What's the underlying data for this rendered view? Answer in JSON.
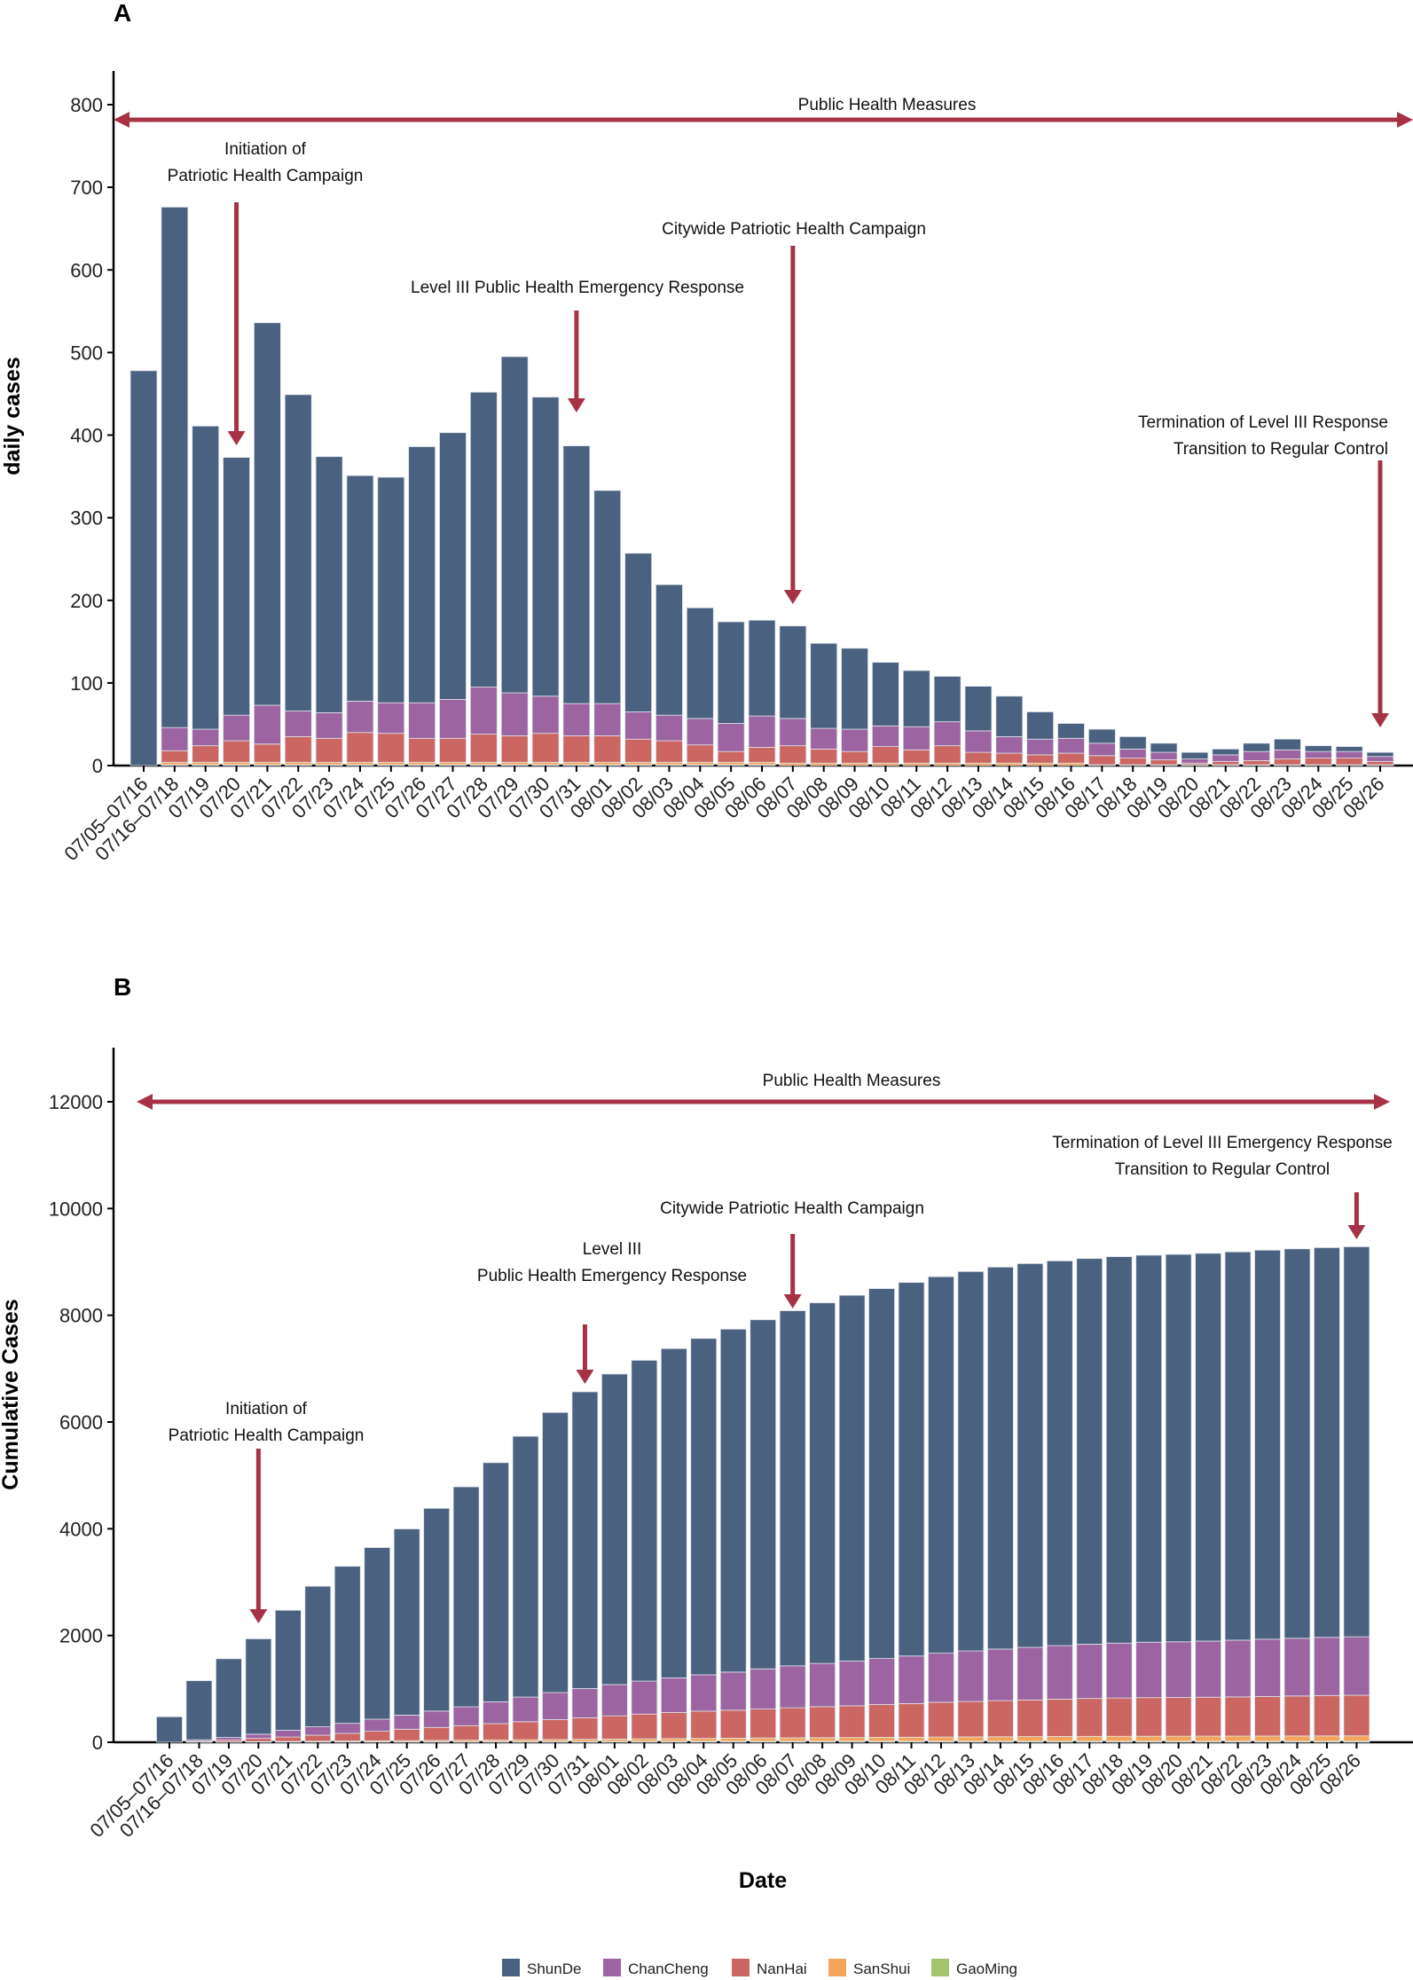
{
  "colors": {
    "ShunDe": "#4a627f",
    "ChanCheng": "#9c64a0",
    "NanHai": "#cb6662",
    "SanShui": "#f5a55a",
    "GaoMing": "#a3c46c",
    "arrow": "#a83245"
  },
  "legend": [
    "ShunDe",
    "ChanCheng",
    "NanHai",
    "SanShui",
    "GaoMing"
  ],
  "xlabel": "Date",
  "chart_data": [
    {
      "panel": "A",
      "type": "bar",
      "stacked": true,
      "ylabel": "daily cases",
      "ylim": [
        0,
        840
      ],
      "yticks": [
        0,
        100,
        200,
        300,
        400,
        500,
        600,
        700,
        800
      ],
      "grid": false,
      "legend_position": "bottom",
      "categories": [
        "07/05–07/16",
        "07/16–07/18",
        "07/19",
        "07/20",
        "07/21",
        "07/22",
        "07/23",
        "07/24",
        "07/25",
        "07/26",
        "07/27",
        "07/28",
        "07/29",
        "07/30",
        "07/31",
        "08/01",
        "08/02",
        "08/03",
        "08/04",
        "08/05",
        "08/06",
        "08/07",
        "08/08",
        "08/09",
        "08/10",
        "08/11",
        "08/12",
        "08/13",
        "08/14",
        "08/15",
        "08/16",
        "08/17",
        "08/18",
        "08/19",
        "08/20",
        "08/21",
        "08/22",
        "08/23",
        "08/24",
        "08/25",
        "08/26"
      ],
      "series": [
        {
          "name": "GaoMing",
          "values": [
            0,
            1,
            1,
            1,
            1,
            1,
            1,
            1,
            1,
            1,
            1,
            1,
            1,
            1,
            1,
            1,
            1,
            1,
            1,
            1,
            1,
            0,
            0,
            0,
            0,
            0,
            0,
            0,
            0,
            0,
            0,
            0,
            0,
            0,
            0,
            0,
            0,
            0,
            0,
            0,
            0
          ]
        },
        {
          "name": "SanShui",
          "values": [
            0,
            3,
            3,
            3,
            3,
            3,
            3,
            3,
            3,
            3,
            3,
            3,
            3,
            3,
            3,
            3,
            3,
            3,
            3,
            3,
            3,
            3,
            3,
            3,
            3,
            3,
            3,
            3,
            3,
            3,
            3,
            1,
            1,
            1,
            1,
            1,
            1,
            1,
            1,
            1,
            1
          ]
        },
        {
          "name": "NanHai",
          "values": [
            0,
            14,
            20,
            26,
            22,
            31,
            29,
            36,
            35,
            29,
            29,
            34,
            32,
            35,
            32,
            32,
            28,
            26,
            21,
            13,
            18,
            21,
            17,
            14,
            20,
            16,
            21,
            13,
            12,
            10,
            12,
            11,
            8,
            6,
            2,
            4,
            5,
            7,
            8,
            8,
            4
          ]
        },
        {
          "name": "ChanCheng",
          "values": [
            0,
            28,
            20,
            31,
            47,
            31,
            31,
            38,
            37,
            43,
            47,
            57,
            52,
            45,
            39,
            39,
            33,
            31,
            32,
            34,
            38,
            33,
            25,
            27,
            25,
            28,
            29,
            26,
            20,
            19,
            18,
            15,
            11,
            9,
            5,
            8,
            11,
            11,
            8,
            8,
            6
          ]
        },
        {
          "name": "ShunDe",
          "values": [
            478,
            630,
            367,
            312,
            463,
            383,
            310,
            273,
            273,
            310,
            323,
            357,
            407,
            362,
            312,
            258,
            192,
            158,
            134,
            123,
            116,
            112,
            103,
            98,
            77,
            68,
            55,
            54,
            49,
            33,
            18,
            17,
            15,
            11,
            8,
            7,
            10,
            13,
            7,
            6,
            5
          ]
        }
      ],
      "annotations": [
        {
          "id": "phm",
          "lines": [
            "Public Health Measures"
          ],
          "arrow": "both"
        },
        {
          "id": "init",
          "lines": [
            "Initiation of",
            "Patriotic Health Campaign"
          ],
          "category": "07/20"
        },
        {
          "id": "lvl3",
          "lines": [
            "Level III Public Health Emergency Response"
          ],
          "category": "07/31"
        },
        {
          "id": "city",
          "lines": [
            "Citywide Patriotic Health Campaign"
          ],
          "category": "08/07"
        },
        {
          "id": "term",
          "lines": [
            "Termination of Level III Response",
            "Transition to Regular Control"
          ],
          "category": "08/26"
        }
      ]
    },
    {
      "panel": "B",
      "type": "bar",
      "stacked": true,
      "ylabel": "Cumulative Cases",
      "xlabel": "Date",
      "ylim": [
        0,
        13000
      ],
      "yticks": [
        0,
        2000,
        4000,
        6000,
        8000,
        10000,
        12000
      ],
      "grid": false,
      "legend_position": "bottom",
      "categories": [
        "07/05–07/16",
        "07/16–07/18",
        "07/19",
        "07/20",
        "07/21",
        "07/22",
        "07/23",
        "07/24",
        "07/25",
        "07/26",
        "07/27",
        "07/28",
        "07/29",
        "07/30",
        "07/31",
        "08/01",
        "08/02",
        "08/03",
        "08/04",
        "08/05",
        "08/06",
        "08/07",
        "08/08",
        "08/09",
        "08/10",
        "08/11",
        "08/12",
        "08/13",
        "08/14",
        "08/15",
        "08/16",
        "08/17",
        "08/18",
        "08/19",
        "08/20",
        "08/21",
        "08/22",
        "08/23",
        "08/24",
        "08/25",
        "08/26"
      ],
      "series": [
        {
          "name": "GaoMing",
          "values": [
            0,
            1,
            2,
            3,
            4,
            5,
            6,
            7,
            8,
            9,
            10,
            11,
            12,
            13,
            14,
            15,
            16,
            17,
            18,
            19,
            20,
            20,
            20,
            20,
            20,
            20,
            20,
            20,
            20,
            20,
            20,
            20,
            20,
            20,
            20,
            20,
            20,
            20,
            20,
            20,
            20
          ]
        },
        {
          "name": "SanShui",
          "values": [
            0,
            3,
            6,
            9,
            12,
            15,
            18,
            21,
            24,
            27,
            30,
            33,
            36,
            39,
            42,
            45,
            48,
            51,
            54,
            57,
            60,
            63,
            66,
            69,
            72,
            75,
            78,
            81,
            84,
            87,
            90,
            91,
            92,
            93,
            94,
            95,
            96,
            97,
            98,
            99,
            100
          ]
        },
        {
          "name": "NanHai",
          "values": [
            0,
            14,
            34,
            60,
            82,
            113,
            142,
            178,
            213,
            242,
            271,
            305,
            337,
            372,
            404,
            436,
            464,
            490,
            511,
            524,
            542,
            563,
            580,
            594,
            614,
            630,
            651,
            664,
            676,
            686,
            698,
            709,
            717,
            723,
            725,
            729,
            734,
            741,
            749,
            757,
            761
          ]
        },
        {
          "name": "ChanCheng",
          "values": [
            0,
            28,
            48,
            79,
            126,
            157,
            188,
            226,
            263,
            306,
            353,
            410,
            462,
            507,
            546,
            585,
            618,
            649,
            681,
            715,
            753,
            786,
            811,
            838,
            863,
            891,
            920,
            946,
            966,
            985,
            1003,
            1018,
            1029,
            1038,
            1043,
            1051,
            1062,
            1073,
            1081,
            1089,
            1095
          ]
        },
        {
          "name": "ShunDe",
          "values": [
            478,
            1108,
            1475,
            1787,
            2250,
            2633,
            2943,
            3216,
            3489,
            3799,
            4122,
            4479,
            4886,
            5248,
            5560,
            5818,
            6010,
            6168,
            6302,
            6425,
            6541,
            6653,
            6756,
            6854,
            6931,
            6999,
            7054,
            7108,
            7157,
            7190,
            7208,
            7225,
            7240,
            7251,
            7259,
            7266,
            7276,
            7289,
            7296,
            7302,
            7307
          ]
        }
      ],
      "annotations": [
        {
          "id": "phm",
          "lines": [
            "Public Health Measures"
          ],
          "arrow": "both"
        },
        {
          "id": "init",
          "lines": [
            "Initiation of",
            "Patriotic Health Campaign"
          ],
          "category": "07/20"
        },
        {
          "id": "lvl3",
          "lines": [
            "Level III",
            "Public Health Emergency Response"
          ],
          "category": "07/31"
        },
        {
          "id": "city",
          "lines": [
            "Citywide Patriotic Health Campaign"
          ],
          "category": "08/07"
        },
        {
          "id": "term",
          "lines": [
            "Termination of Level III Emergency Response",
            "Transition to Regular Control"
          ],
          "category": "08/26"
        }
      ]
    }
  ]
}
